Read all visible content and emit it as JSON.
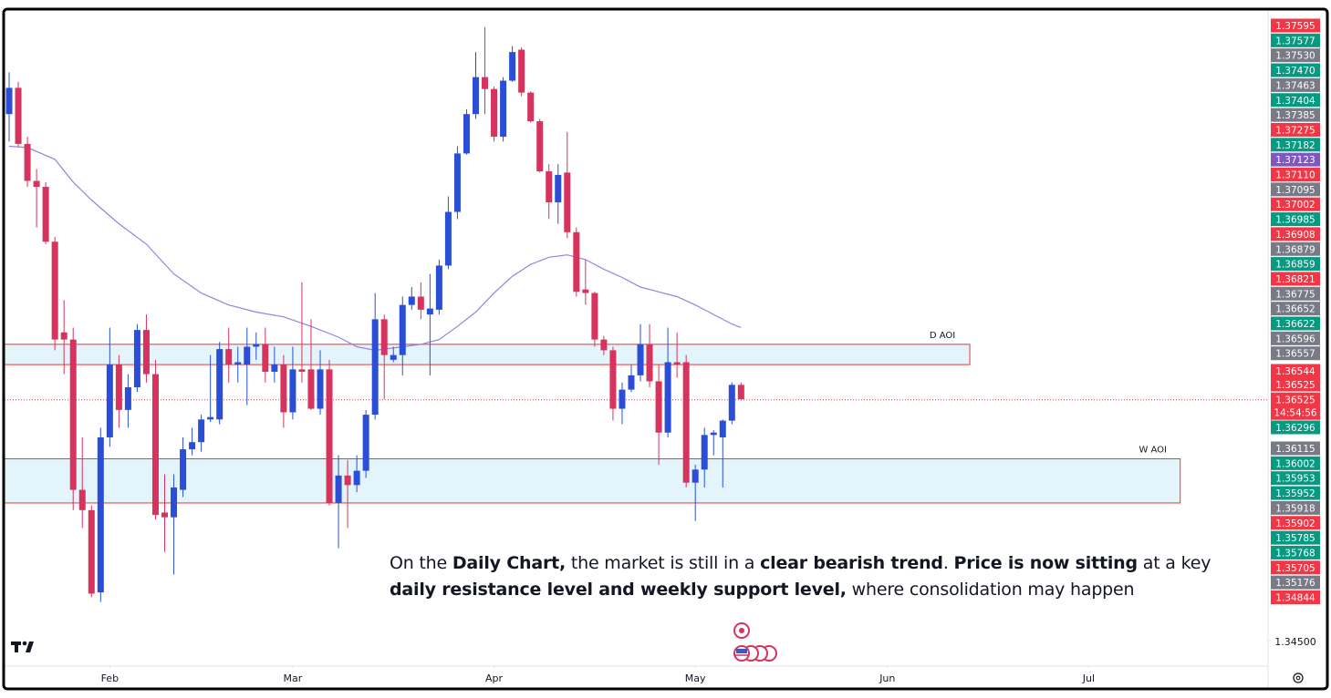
{
  "chart_data": {
    "type": "candlestick",
    "up_color": "#2a4fd6",
    "down_color": "#d6335e",
    "open": [
      1.3892,
      1.3914,
      1.3867,
      1.3836,
      1.3831,
      1.3785,
      1.3709,
      1.3703,
      1.3577,
      1.356,
      1.3491,
      1.3621,
      1.3682,
      1.3644,
      1.3663,
      1.3711,
      1.3674,
      1.3558,
      1.3554,
      1.3577,
      1.3611,
      1.3617,
      1.3636,
      1.3636,
      1.3695,
      1.3682,
      1.3682,
      1.3697,
      1.3699,
      1.3676,
      1.3682,
      1.3642,
      1.3678,
      1.3678,
      1.3645,
      1.3678,
      1.3566,
      1.3589,
      1.3581,
      1.3593,
      1.364,
      1.372,
      1.3686,
      1.369,
      1.3732,
      1.3739,
      1.3724,
      1.3728,
      1.3765,
      1.381,
      1.3859,
      1.3892,
      1.3923,
      1.3913,
      1.3873,
      1.392,
      1.3946,
      1.391,
      1.3886,
      1.3844,
      1.3818,
      1.3843,
      1.3793,
      1.3745,
      1.3742,
      1.3703,
      1.3694,
      1.3645,
      1.3661,
      1.3673,
      1.3699,
      1.3668,
      1.3625,
      1.3684,
      1.3684,
      1.3583,
      1.3594,
      1.3623,
      1.3621,
      1.3635,
      1.3665
    ],
    "high": [
      1.3927,
      1.3919,
      1.3873,
      1.3846,
      1.3835,
      1.3789,
      1.3736,
      1.3713,
      1.3621,
      1.3564,
      1.3629,
      1.3713,
      1.369,
      1.3674,
      1.3716,
      1.3724,
      1.3686,
      1.359,
      1.359,
      1.3621,
      1.3629,
      1.364,
      1.369,
      1.3701,
      1.3713,
      1.3697,
      1.3713,
      1.3709,
      1.3713,
      1.3697,
      1.369,
      1.3697,
      1.3751,
      1.372,
      1.3694,
      1.3686,
      1.3606,
      1.3602,
      1.3606,
      1.3644,
      1.3742,
      1.3724,
      1.3697,
      1.3739,
      1.3747,
      1.3751,
      1.3758,
      1.377,
      1.3823,
      1.3865,
      1.3896,
      1.3944,
      1.3965,
      1.3915,
      1.3923,
      1.3949,
      1.3948,
      1.3911,
      1.3888,
      1.385,
      1.385,
      1.3877,
      1.3797,
      1.377,
      1.3743,
      1.3706,
      1.3697,
      1.3667,
      1.3682,
      1.3716,
      1.3716,
      1.3682,
      1.3713,
      1.3709,
      1.369,
      1.3598,
      1.3629,
      1.3627,
      1.3636,
      1.3667,
      1.3667
    ],
    "low": [
      1.3869,
      1.3865,
      1.3831,
      1.3797,
      1.3783,
      1.3694,
      1.3674,
      1.356,
      1.3545,
      1.3487,
      1.3483,
      1.3613,
      1.3629,
      1.3629,
      1.3659,
      1.3667,
      1.3552,
      1.3525,
      1.3506,
      1.3571,
      1.3606,
      1.3609,
      1.3634,
      1.3632,
      1.3667,
      1.3667,
      1.3648,
      1.3686,
      1.3667,
      1.3667,
      1.3629,
      1.3636,
      1.3667,
      1.3644,
      1.364,
      1.3564,
      1.3528,
      1.3545,
      1.3575,
      1.3587,
      1.3636,
      1.3653,
      1.3684,
      1.3673,
      1.3728,
      1.372,
      1.3673,
      1.3724,
      1.3762,
      1.3804,
      1.3858,
      1.3888,
      1.3892,
      1.3869,
      1.3869,
      1.3919,
      1.3907,
      1.3885,
      1.3843,
      1.3804,
      1.38,
      1.3788,
      1.3739,
      1.3732,
      1.3697,
      1.369,
      1.3635,
      1.3632,
      1.3659,
      1.3668,
      1.3663,
      1.3598,
      1.3621,
      1.3671,
      1.3579,
      1.3551,
      1.3579,
      1.3606,
      1.3579,
      1.3632,
      1.3652
    ],
    "close": [
      1.3914,
      1.3867,
      1.3836,
      1.3831,
      1.3785,
      1.3703,
      1.3703,
      1.3577,
      1.356,
      1.349,
      1.3621,
      1.3682,
      1.3644,
      1.3663,
      1.3711,
      1.3674,
      1.3556,
      1.3554,
      1.3579,
      1.3611,
      1.3617,
      1.3636,
      1.3638,
      1.3695,
      1.3682,
      1.3684,
      1.3697,
      1.3699,
      1.3676,
      1.3682,
      1.3642,
      1.3678,
      1.3676,
      1.3645,
      1.3678,
      1.3566,
      1.3589,
      1.3581,
      1.3593,
      1.364,
      1.372,
      1.369,
      1.369,
      1.3732,
      1.3739,
      1.3728,
      1.3729,
      1.3765,
      1.381,
      1.3859,
      1.3892,
      1.3923,
      1.3913,
      1.3873,
      1.392,
      1.3944,
      1.391,
      1.3886,
      1.3844,
      1.3818,
      1.3841,
      1.3793,
      1.3743,
      1.3742,
      1.3703,
      1.3694,
      1.3645,
      1.3661,
      1.3673,
      1.3699,
      1.3668,
      1.3625,
      1.3684,
      1.3682,
      1.3583,
      1.3594,
      1.3623,
      1.3625,
      1.3635,
      1.3665,
      1.3653
    ],
    "ma": {
      "color": "#9a7fe0",
      "x": [
        0,
        2,
        5,
        7,
        9,
        12,
        15,
        18,
        21,
        24,
        27,
        30,
        33,
        36,
        38,
        40,
        41,
        43,
        45,
        47,
        49,
        51,
        53,
        55,
        57,
        59,
        61,
        63,
        65,
        67,
        69,
        71,
        73,
        75,
        77,
        79,
        80
      ],
      "values": [
        1.3865,
        1.3864,
        1.3854,
        1.3835,
        1.382,
        1.38,
        1.3783,
        1.3758,
        1.3742,
        1.3732,
        1.3726,
        1.3722,
        1.3714,
        1.3705,
        1.3697,
        1.3694,
        1.3695,
        1.3697,
        1.3699,
        1.3703,
        1.3714,
        1.3726,
        1.3742,
        1.3756,
        1.3766,
        1.3772,
        1.3774,
        1.377,
        1.3762,
        1.3755,
        1.3747,
        1.3743,
        1.3739,
        1.3732,
        1.3724,
        1.3716,
        1.3713
      ]
    },
    "zones": [
      {
        "label": "D AOI",
        "low": 1.3682,
        "high": 1.3699,
        "x_end": 105,
        "color": "#e53935",
        "fill": "#e3f4fb"
      },
      {
        "label": "W AOI",
        "low": 1.3566,
        "high": 1.3603,
        "x_end": 128,
        "color": "#e53935",
        "fill": "#e3f4fb"
      }
    ],
    "last_price": {
      "value": 1.36525,
      "label": "1.36525",
      "countdown": "14:54:56",
      "color": "#f23645"
    },
    "xlim": [
      -0.5,
      137.6
    ],
    "ylim": [
      1.343,
      1.398
    ],
    "xticks": [
      {
        "value": 11,
        "label": "Feb"
      },
      {
        "value": 31,
        "label": "Mar"
      },
      {
        "value": 53,
        "label": "Apr"
      },
      {
        "value": 75,
        "label": "May"
      },
      {
        "value": 96,
        "label": "Jun"
      },
      {
        "value": 118,
        "label": "Jul"
      }
    ],
    "yticks": [
      {
        "value": 1.345,
        "label": "1.34500"
      }
    ],
    "price_tags": [
      {
        "label": "1.37595",
        "color": "#f23645"
      },
      {
        "label": "1.37577",
        "color": "#089981"
      },
      {
        "label": "1.37530",
        "color": "#787b86"
      },
      {
        "label": "1.37470",
        "color": "#089981"
      },
      {
        "label": "1.37463",
        "color": "#787b86"
      },
      {
        "label": "1.37404",
        "color": "#089981"
      },
      {
        "label": "1.37385",
        "color": "#787b86"
      },
      {
        "label": "1.37275",
        "color": "#f23645"
      },
      {
        "label": "1.37182",
        "color": "#089981"
      },
      {
        "label": "1.37123",
        "color": "#7e57c2"
      },
      {
        "label": "1.37110",
        "color": "#f23645"
      },
      {
        "label": "1.37095",
        "color": "#787b86"
      },
      {
        "label": "1.37002",
        "color": "#f23645"
      },
      {
        "label": "1.36985",
        "color": "#089981"
      },
      {
        "label": "1.36908",
        "color": "#f23645"
      },
      {
        "label": "1.36879",
        "color": "#787b86"
      },
      {
        "label": "1.36859",
        "color": "#089981"
      },
      {
        "label": "1.36821",
        "color": "#f23645"
      },
      {
        "label": "1.36775",
        "color": "#787b86"
      },
      {
        "label": "1.36652",
        "color": "#787b86"
      },
      {
        "label": "1.36622",
        "color": "#089981"
      },
      {
        "label": "1.36596",
        "color": "#787b86"
      },
      {
        "label": "1.36557",
        "color": "#787b86"
      },
      {
        "label": "1.36544",
        "color": "#f23645"
      },
      {
        "label": "1.36525",
        "color": "#f23645"
      },
      {
        "label": "1.36296",
        "color": "#089981"
      },
      {
        "label": "1.36115",
        "color": "#787b86"
      },
      {
        "label": "1.36002",
        "color": "#089981"
      },
      {
        "label": "1.35953",
        "color": "#089981"
      },
      {
        "label": "1.35952",
        "color": "#089981"
      },
      {
        "label": "1.35918",
        "color": "#787b86"
      },
      {
        "label": "1.35902",
        "color": "#f23645"
      },
      {
        "label": "1.35785",
        "color": "#089981"
      },
      {
        "label": "1.35768",
        "color": "#089981"
      },
      {
        "label": "1.35705",
        "color": "#f23645"
      },
      {
        "label": "1.35176",
        "color": "#787b86"
      },
      {
        "label": "1.34844",
        "color": "#f23645"
      }
    ],
    "note": [
      [
        {
          "text": "On the "
        },
        {
          "text": "Daily Chart,",
          "bold": true
        },
        {
          "text": " the market is still in a "
        },
        {
          "text": "clear bearish trend",
          "bold": true
        },
        {
          "text": ". "
        },
        {
          "text": "Price is now sitting",
          "bold": true
        },
        {
          "text": " at a key"
        }
      ],
      [
        {
          "text": "daily resistance level and weekly support level,",
          "bold": true
        },
        {
          "text": " where consolidation may happen"
        }
      ]
    ]
  }
}
